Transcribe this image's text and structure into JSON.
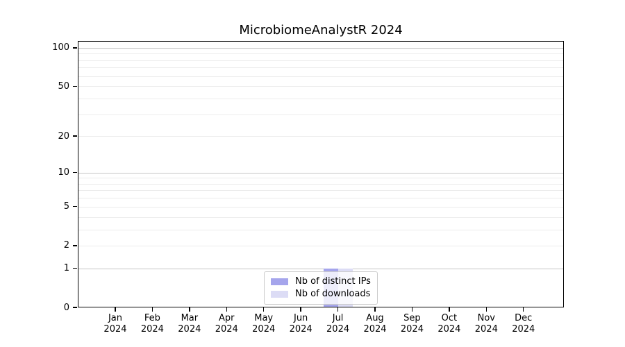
{
  "chart_data": {
    "type": "bar",
    "title": "MicrobiomeAnalystR 2024",
    "categories": [
      "Jan",
      "Feb",
      "Mar",
      "Apr",
      "May",
      "Jun",
      "Jul",
      "Aug",
      "Sep",
      "Oct",
      "Nov",
      "Dec"
    ],
    "year_label": "2024",
    "series": [
      {
        "name": "Nb of distinct IPs",
        "color": "#a5a5ec",
        "values": [
          0,
          0,
          0,
          0,
          0,
          0,
          1,
          0,
          0,
          0,
          0,
          0
        ]
      },
      {
        "name": "Nb of downloads",
        "color": "#dcdcf5",
        "values": [
          0,
          0,
          0,
          0,
          0,
          0,
          1,
          0,
          0,
          0,
          0,
          0
        ]
      }
    ],
    "xlabel": "",
    "ylabel": "",
    "yscale": "log1p",
    "yticks": [
      0,
      1,
      2,
      5,
      10,
      20,
      50,
      100
    ],
    "minor_grid_values": [
      2,
      3,
      4,
      5,
      6,
      7,
      8,
      9,
      20,
      30,
      40,
      50,
      60,
      70,
      80,
      90
    ],
    "major_grid_values": [
      1,
      10,
      100
    ],
    "ylim": [
      0,
      113
    ],
    "grid": true,
    "legend_position": "lower center",
    "colors": {
      "axis": "#000000",
      "major_grid": "#c4c4c4",
      "minor_grid": "#ececec",
      "legend_border": "#cccccc",
      "background": "#ffffff"
    }
  }
}
